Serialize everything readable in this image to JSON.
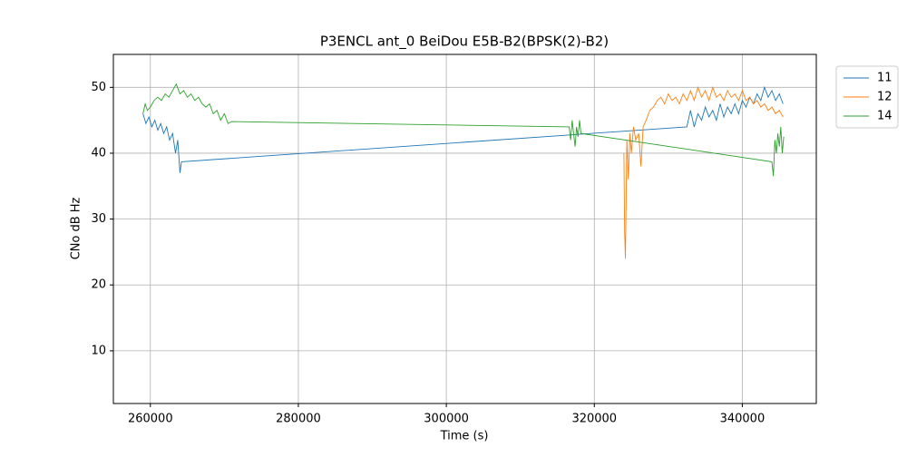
{
  "chart_data": {
    "type": "line",
    "title": "P3ENCL ant_0 BeiDou E5B-B2(BPSK(2)-B2)",
    "xlabel": "Time (s)",
    "ylabel": "CNo dB Hz",
    "xlim": [
      255000,
      350000
    ],
    "ylim": [
      2,
      55
    ],
    "xticks": [
      260000,
      280000,
      300000,
      320000,
      340000
    ],
    "yticks": [
      10,
      20,
      30,
      40,
      50
    ],
    "grid": true,
    "legend": "outside-upper-right",
    "series": [
      {
        "name": "11",
        "color": "#1f77b4",
        "x": [
          259000,
          259400,
          259800,
          260200,
          260600,
          261000,
          261400,
          261800,
          262200,
          262600,
          263000,
          263400,
          263700,
          264000,
          264200,
          332500,
          333000,
          333500,
          334000,
          334500,
          335000,
          335500,
          336000,
          336500,
          337000,
          337500,
          338000,
          338500,
          339000,
          339500,
          340000,
          340500,
          341000,
          341500,
          342000,
          342500,
          343000,
          343500,
          344000,
          344500,
          345000,
          345500
        ],
        "values": [
          46,
          44.5,
          45.5,
          44,
          45,
          43.5,
          44.5,
          43,
          44,
          42,
          43,
          40,
          42,
          37,
          38.7,
          44,
          46.5,
          44,
          46,
          45,
          47,
          45.5,
          46.5,
          45,
          47.5,
          45.5,
          47,
          46,
          47.5,
          46,
          48,
          47,
          48.5,
          47.5,
          49,
          48,
          50,
          48.5,
          49.5,
          48,
          49,
          47.5
        ]
      },
      {
        "name": "12",
        "color": "#ff7f0e",
        "x": [
          324000,
          324100,
          324200,
          324400,
          324600,
          324800,
          325000,
          325300,
          325600,
          326000,
          326300,
          326600,
          327000,
          327500,
          328000,
          328500,
          329000,
          329500,
          330000,
          330500,
          331000,
          331500,
          332000,
          332500,
          333000,
          333500,
          334000,
          334500,
          335000,
          335500,
          336000,
          336500,
          337000,
          337500,
          338000,
          338500,
          339000,
          339500,
          340000,
          340500,
          341000,
          341500,
          342000,
          342500,
          343000,
          343500,
          344000,
          344500,
          345000,
          345500
        ],
        "values": [
          40,
          28,
          24,
          42,
          36,
          43,
          40,
          44,
          42,
          43,
          38,
          44,
          45,
          46.5,
          47,
          48,
          48.5,
          47.5,
          49,
          48,
          48.5,
          47.5,
          49,
          48,
          49.5,
          48,
          50,
          48.5,
          49.5,
          48,
          50,
          48.5,
          49,
          48,
          49.5,
          48.5,
          49,
          48,
          49.5,
          48,
          48.5,
          47.5,
          48,
          47,
          47.5,
          46.5,
          47,
          46,
          46.5,
          45.5
        ]
      },
      {
        "name": "14",
        "color": "#2ca02c",
        "x": [
          259000,
          259300,
          259600,
          260000,
          260500,
          261000,
          261500,
          262000,
          262500,
          263000,
          263500,
          264000,
          264500,
          265000,
          265500,
          266000,
          266500,
          267000,
          267500,
          268000,
          268500,
          269000,
          269500,
          270000,
          270500,
          271000,
          316600,
          316800,
          317000,
          317200,
          317400,
          317600,
          317800,
          318000,
          318200,
          344000,
          344200,
          344400,
          344600,
          344800,
          345000,
          345200,
          345400,
          345600
        ],
        "values": [
          46,
          47.5,
          46.5,
          47,
          48,
          48.5,
          48,
          49,
          48.5,
          49.5,
          50.5,
          49,
          49.5,
          48.5,
          49,
          48,
          48.5,
          47.5,
          47,
          47.5,
          46,
          46.5,
          45,
          46,
          44.5,
          44.8,
          44,
          42,
          45,
          43,
          41,
          44,
          42.5,
          45,
          43,
          38.7,
          36.5,
          42,
          40,
          43,
          41,
          44,
          40,
          42.5
        ]
      }
    ]
  }
}
